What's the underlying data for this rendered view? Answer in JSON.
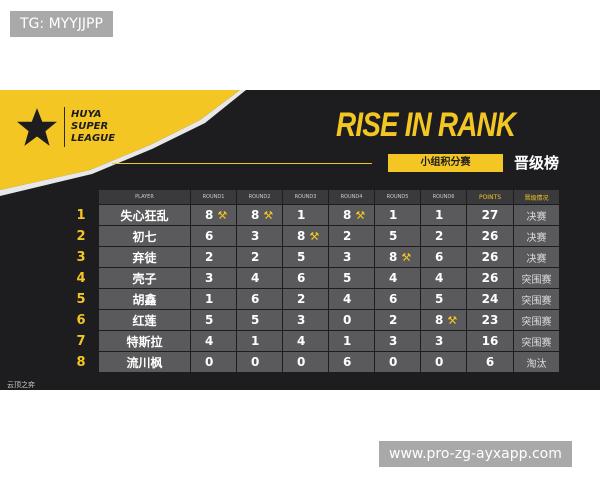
{
  "watermarks": {
    "top": "TG: MYYJJPP",
    "bottom": "www.pro-zg-ayxapp.com"
  },
  "logo": {
    "line1": "HUYA",
    "line2": "SUPER",
    "line3": "LEAGUE"
  },
  "title": "RISE IN RANK",
  "subtitle_tag": "小组积分赛",
  "subtitle": "晋级榜",
  "colors": {
    "accent": "#f3c623",
    "background": "#1d1d1f",
    "cell": "#5a5a5c"
  },
  "table": {
    "headers": [
      "PLAYER",
      "ROUND1",
      "ROUND2",
      "ROUND3",
      "ROUND4",
      "ROUND5",
      "ROUND6",
      "POINTS",
      "晋级情况"
    ],
    "rows": [
      {
        "rank": "1",
        "player": "失心狂乱",
        "rounds": [
          "8",
          "8",
          "1",
          "8",
          "1",
          "1"
        ],
        "top": [
          true,
          true,
          false,
          true,
          false,
          false
        ],
        "points": "27",
        "status": "决赛"
      },
      {
        "rank": "2",
        "player": "初七",
        "rounds": [
          "6",
          "3",
          "8",
          "2",
          "5",
          "2"
        ],
        "top": [
          false,
          false,
          true,
          false,
          false,
          false
        ],
        "points": "26",
        "status": "决赛"
      },
      {
        "rank": "3",
        "player": "弃徒",
        "rounds": [
          "2",
          "2",
          "5",
          "3",
          "8",
          "6"
        ],
        "top": [
          false,
          false,
          false,
          false,
          true,
          false
        ],
        "points": "26",
        "status": "决赛"
      },
      {
        "rank": "4",
        "player": "壳子",
        "rounds": [
          "3",
          "4",
          "6",
          "5",
          "4",
          "4"
        ],
        "top": [
          false,
          false,
          false,
          false,
          false,
          false
        ],
        "points": "26",
        "status": "突围赛"
      },
      {
        "rank": "5",
        "player": "胡鑫",
        "rounds": [
          "1",
          "6",
          "2",
          "4",
          "6",
          "5"
        ],
        "top": [
          false,
          false,
          false,
          false,
          false,
          false
        ],
        "points": "24",
        "status": "突围赛"
      },
      {
        "rank": "6",
        "player": "红莲",
        "rounds": [
          "5",
          "5",
          "3",
          "0",
          "2",
          "8"
        ],
        "top": [
          false,
          false,
          false,
          false,
          false,
          true
        ],
        "points": "23",
        "status": "突围赛"
      },
      {
        "rank": "7",
        "player": "特斯拉",
        "rounds": [
          "4",
          "1",
          "4",
          "1",
          "3",
          "3"
        ],
        "top": [
          false,
          false,
          false,
          false,
          false,
          false
        ],
        "points": "16",
        "status": "突围赛"
      },
      {
        "rank": "8",
        "player": "流川枫",
        "rounds": [
          "0",
          "0",
          "0",
          "6",
          "0",
          "0"
        ],
        "top": [
          false,
          false,
          false,
          false,
          false,
          false
        ],
        "points": "6",
        "status": "淘汰"
      }
    ]
  },
  "footer": "云顶之弈"
}
